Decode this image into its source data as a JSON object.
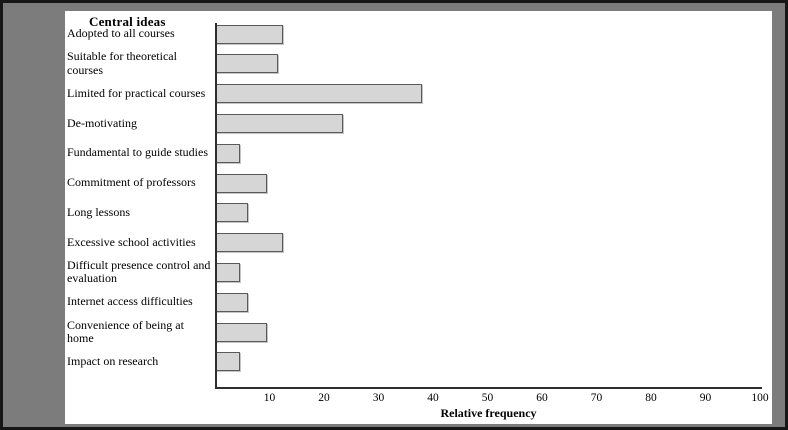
{
  "chart_data": {
    "type": "bar",
    "orientation": "horizontal",
    "title": "Central ideas",
    "xlabel": "Relative frequency",
    "categories": [
      "Adopted to all courses",
      "Suitable for theoretical courses",
      "Limited for practical courses",
      "De-motivating",
      "Fundamental to guide studies",
      "Commitment of professors",
      "Long lessons",
      "Excessive school activities",
      "Difficult presence control and evaluation",
      "Internet access difficulties",
      "Convenience of being at home",
      "Impact on research"
    ],
    "values": [
      12.5,
      11.5,
      38,
      23.5,
      4.5,
      9.5,
      6,
      12.5,
      4.5,
      6,
      9.5,
      4.5
    ],
    "xlim": [
      0,
      100
    ],
    "xticks": [
      10,
      20,
      30,
      40,
      50,
      60,
      70,
      80,
      90,
      100
    ],
    "grid": false,
    "legend": "none",
    "bar_fill": "#d6d6d6",
    "bar_border": "#5a5a5a"
  },
  "colors": {
    "surround_background": "#7c7c7c",
    "frame_border": "#161616",
    "panel_background": "#ffffff",
    "axis_line": "#2e2e2e",
    "text": "#000000"
  }
}
